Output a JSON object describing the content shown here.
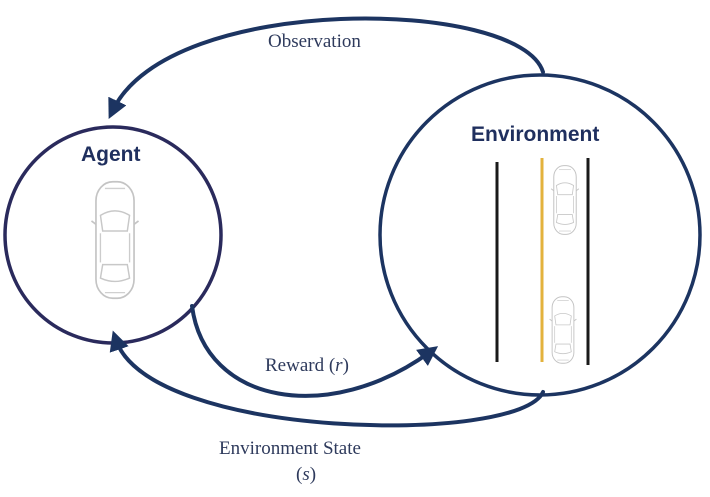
{
  "nodes": {
    "agent": {
      "title": "Agent"
    },
    "environment": {
      "title": "Environment"
    }
  },
  "edges": {
    "observation": {
      "label": "Observation"
    },
    "reward": {
      "label_prefix": "Reward (",
      "symbol": "r",
      "label_suffix": ")"
    },
    "state": {
      "label": "Environment State",
      "symbol_open": "(",
      "symbol": "s",
      "symbol_close": ")"
    }
  },
  "colors": {
    "stroke": "#1c3461",
    "circle": "#2a2a5c",
    "lane_line": "#1a1a1a",
    "center_line": "#e3b23c",
    "car_outline": "#c4c4c4"
  },
  "icons": {
    "agent_car": "car-top-view-icon",
    "env_car_top": "car-top-view-icon",
    "env_car_bottom": "car-top-view-icon"
  }
}
